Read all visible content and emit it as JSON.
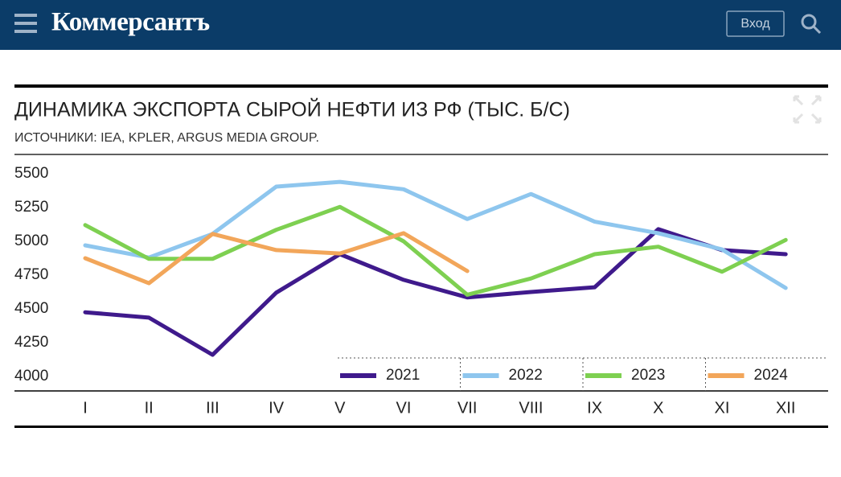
{
  "header": {
    "logo": "Коммерсантъ",
    "login": "Вход"
  },
  "chart_data": {
    "type": "line",
    "title": "ДИНАМИКА ЭКСПОРТА СЫРОЙ НЕФТИ ИЗ РФ (ТЫС. Б/С)",
    "subtitle": "ИСТОЧНИКИ: IEA, KPLER, ARGUS MEDIA GROUP.",
    "categories": [
      "I",
      "II",
      "III",
      "IV",
      "V",
      "VI",
      "VII",
      "VIII",
      "IX",
      "X",
      "XI",
      "XII"
    ],
    "series": [
      {
        "name": "2021",
        "color": "#3f1a8c",
        "values": [
          4475,
          4435,
          4160,
          4620,
          4905,
          4715,
          4585,
          4625,
          4660,
          5090,
          4935,
          4905
        ]
      },
      {
        "name": "2022",
        "color": "#8ec6ee",
        "values": [
          4970,
          4880,
          5055,
          5405,
          5440,
          5385,
          5165,
          5350,
          5145,
          5060,
          4940,
          4655
        ]
      },
      {
        "name": "2023",
        "color": "#7ed051",
        "values": [
          5120,
          4870,
          4870,
          5085,
          5255,
          5000,
          4605,
          4725,
          4905,
          4960,
          4775,
          5010
        ]
      },
      {
        "name": "2024",
        "color": "#f2a65a",
        "values": [
          4875,
          4690,
          5055,
          4935,
          4910,
          5060,
          4780,
          null,
          null,
          null,
          null,
          null
        ]
      }
    ],
    "ylim": [
      4000,
      5500
    ],
    "yticks": [
      4000,
      4250,
      4500,
      4750,
      5000,
      5250,
      5500
    ],
    "grid": false,
    "legend": "bottom-right"
  }
}
